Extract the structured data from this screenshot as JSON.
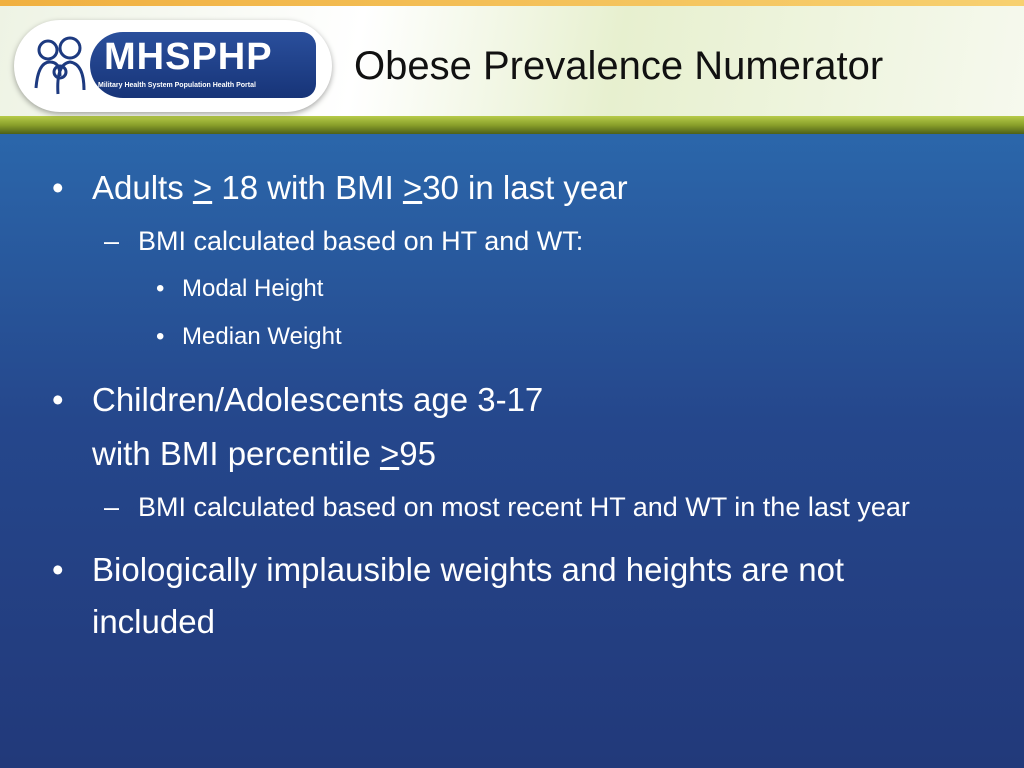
{
  "header": {
    "logo_text": "MHSPHP",
    "logo_subtitle": "Military Health System Population Health Portal",
    "title": "Obese Prevalence Numerator"
  },
  "bullets": [
    {
      "level": 1,
      "segments": [
        {
          "text": "Adults "
        },
        {
          "text": ">",
          "underline": true
        },
        {
          "text": " 18 with BMI "
        },
        {
          "text": ">",
          "underline": true
        },
        {
          "text": "30 in last year"
        }
      ]
    },
    {
      "level": 2,
      "segments": [
        {
          "text": "BMI calculated based on HT and WT:"
        }
      ]
    },
    {
      "level": 3,
      "segments": [
        {
          "text": "Modal Height"
        }
      ]
    },
    {
      "level": 3,
      "segments": [
        {
          "text": "Median Weight"
        }
      ]
    },
    {
      "level": 1,
      "segments": [
        {
          "text": "Children/Adolescents age 3-17"
        }
      ]
    },
    {
      "level": 1,
      "continuation": true,
      "segments": [
        {
          "text": "with BMI percentile "
        },
        {
          "text": ">",
          "underline": true
        },
        {
          "text": "95"
        }
      ]
    },
    {
      "level": 2,
      "segments": [
        {
          "text": "BMI calculated based on most recent HT and WT in the last year"
        }
      ]
    },
    {
      "level": 1,
      "segments": [
        {
          "text": "Biologically implausible weights and heights are not included"
        }
      ]
    }
  ]
}
